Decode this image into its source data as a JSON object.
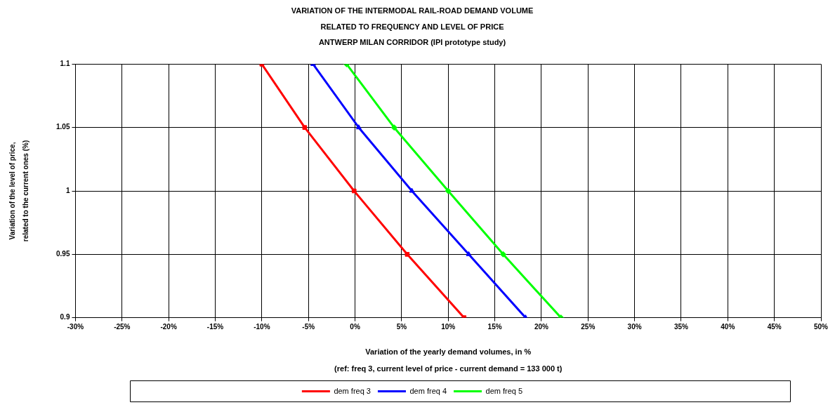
{
  "chart_data": {
    "type": "line",
    "title": "VARIATION OF THE INTERMODAL RAIL-ROAD DEMAND VOLUME RELATED TO FREQUENCY AND LEVEL OF PRICE",
    "subtitle": "ANTWERP MILAN CORRIDOR (IPI prototype study)",
    "xlabel": "Variation of the yearly demand volumes, in %",
    "ylabel": "Variation of the level of price, related to the current ones (%)",
    "annotations": [
      "(ref: freq 3, current level of price - current demand = 133 000 t)"
    ],
    "xlim": [
      -30,
      50
    ],
    "xticks": [
      {
        "value": -30,
        "label": "-30%"
      },
      {
        "value": -25,
        "label": "-25%"
      },
      {
        "value": -20,
        "label": "-20%"
      },
      {
        "value": -15,
        "label": "-15%"
      },
      {
        "value": -10,
        "label": "-10%"
      },
      {
        "value": -5,
        "label": "-5%"
      },
      {
        "value": 0,
        "label": "0%"
      },
      {
        "value": 5,
        "label": "5%"
      },
      {
        "value": 10,
        "label": "10%"
      },
      {
        "value": 15,
        "label": "15%"
      },
      {
        "value": 20,
        "label": "20%"
      },
      {
        "value": 25,
        "label": "25%"
      },
      {
        "value": 30,
        "label": "30%"
      },
      {
        "value": 35,
        "label": "35%"
      },
      {
        "value": 40,
        "label": "40%"
      },
      {
        "value": 45,
        "label": "45%"
      },
      {
        "value": 50,
        "label": "50%"
      }
    ],
    "ylim": [
      0.9,
      1.1
    ],
    "yticks": [
      0.9,
      0.95,
      1,
      1.05,
      1.1
    ],
    "grid": true,
    "legend": "bottom",
    "line_style": "solid",
    "series": [
      {
        "name": "dem freq 3",
        "color": "#ff0000",
        "marker": "square",
        "x": [
          -10,
          -5.4,
          -0.1,
          5.6,
          11.7
        ],
        "values": [
          1.1,
          1.05,
          1,
          0.95,
          0.9
        ]
      },
      {
        "name": "dem freq 4",
        "color": "#0000ff",
        "marker": "triangle",
        "x": [
          -4.5,
          0.4,
          6.1,
          12.2,
          18.3
        ],
        "values": [
          1.1,
          1.05,
          1,
          0.95,
          0.9
        ]
      },
      {
        "name": "dem freq 5",
        "color": "#00ff00",
        "marker": "diamond",
        "x": [
          -0.9,
          4.2,
          10,
          15.9,
          22.1
        ],
        "values": [
          1.1,
          1.05,
          1,
          0.95,
          0.9
        ]
      }
    ]
  }
}
